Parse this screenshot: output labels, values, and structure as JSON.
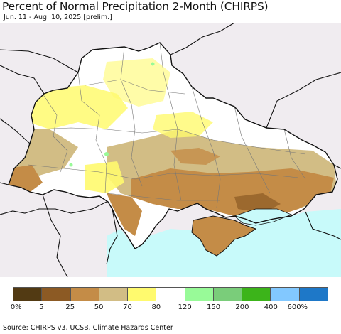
{
  "header": {
    "title": "Percent of Normal Precipitation 2-Month (CHIRPS)",
    "subtitle": "Jun. 11 - Aug. 10, 2025 [prelim.]"
  },
  "map": {
    "colors": {
      "background": "#f0ecf0",
      "sea": "#c8fafa",
      "ukraine_base": "#ffffff",
      "border": "#111111",
      "oblast": "#777777"
    }
  },
  "legend": {
    "swatches": [
      "#523a13",
      "#8c5a24",
      "#c48c47",
      "#d2bd85",
      "#fffa6e",
      "#ffffff",
      "#98fa98",
      "#7acd7a",
      "#3cb41a",
      "#82c8ff",
      "#1e78c8"
    ],
    "ticks": [
      "0%",
      "5",
      "25",
      "50",
      "70",
      "80",
      "120",
      "150",
      "200",
      "400",
      "600%"
    ]
  },
  "footer": {
    "source": "Source: CHIRPS v3, UCSB, Climate Hazards Center"
  }
}
